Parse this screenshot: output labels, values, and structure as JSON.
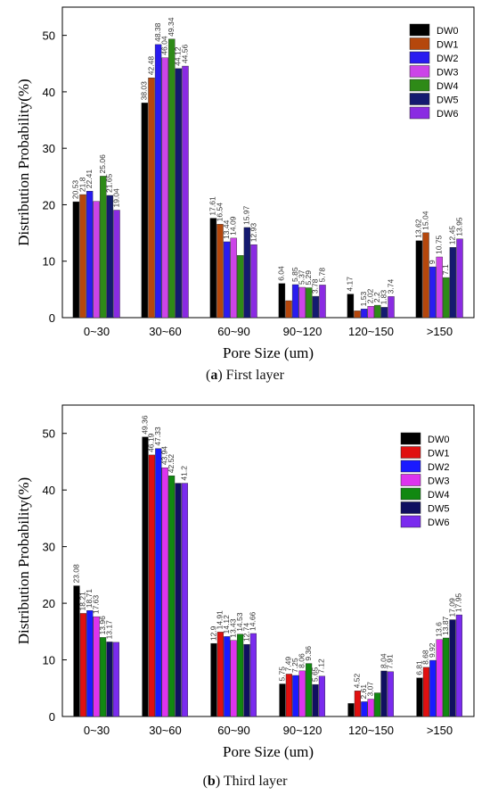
{
  "captions": [
    {
      "letter": "a",
      "text": "First layer"
    },
    {
      "letter": "b",
      "text": "Third layer"
    }
  ],
  "chart_data": [
    {
      "type": "bar",
      "xlabel": "Pore Size (um)",
      "ylabel": "Distribution Probability(%)",
      "ylim": [
        0,
        55
      ],
      "yticks": [
        0,
        10,
        20,
        30,
        40,
        50
      ],
      "grid": false,
      "legend_position": "top-right",
      "categories": [
        "0~30",
        "30~60",
        "60~90",
        "90~120",
        "120~150",
        ">150"
      ],
      "series": [
        {
          "name": "DW0",
          "color": "#000000",
          "values": [
            20.53,
            38.03,
            17.61,
            6.04,
            4.17,
            13.62
          ],
          "labels": [
            "20.53",
            "38.03",
            "17.61",
            "6.04",
            "4.17",
            "13.62"
          ]
        },
        {
          "name": "DW1",
          "color": "#b5470c",
          "values": [
            21.8,
            42.48,
            16.54,
            3.0,
            1.2,
            15.04
          ],
          "labels": [
            "21.8",
            "42.48",
            "16.54",
            "",
            "",
            "15.04"
          ]
        },
        {
          "name": "DW2",
          "color": "#2a1cf0",
          "values": [
            22.41,
            48.38,
            13.44,
            5.85,
            1.53,
            9.0
          ],
          "labels": [
            "22.41",
            "48.38",
            "13.44",
            "5.85",
            "1.53",
            "9"
          ]
        },
        {
          "name": "DW3",
          "color": "#cc44e8",
          "values": [
            20.6,
            46.04,
            14.09,
            5.37,
            2.02,
            10.75
          ],
          "labels": [
            "",
            "46.04",
            "14.09",
            "5.37",
            "2.02",
            "10.75"
          ]
        },
        {
          "name": "DW4",
          "color": "#2e8a17",
          "values": [
            25.06,
            49.34,
            11.03,
            5.29,
            2.2,
            7.1
          ],
          "labels": [
            "25.06",
            "49.34",
            "",
            "5.29",
            "2.2",
            "7.1"
          ]
        },
        {
          "name": "DW5",
          "color": "#141a70",
          "values": [
            21.65,
            44.12,
            15.97,
            3.78,
            1.83,
            12.45
          ],
          "labels": [
            "21.65",
            "44.12",
            "15.97",
            "3.78",
            "1.83",
            "12.45"
          ]
        },
        {
          "name": "DW6",
          "color": "#8a2be2",
          "values": [
            19.04,
            44.56,
            12.93,
            5.78,
            3.74,
            13.95
          ],
          "labels": [
            "19.04",
            "44.56",
            "12.93",
            "5.78",
            "3.74",
            "13.95"
          ]
        }
      ]
    },
    {
      "type": "bar",
      "xlabel": "Pore Size (um)",
      "ylabel": "Distribution Probability(%)",
      "ylim": [
        0,
        55
      ],
      "yticks": [
        0,
        10,
        20,
        30,
        40,
        50
      ],
      "grid": false,
      "legend_position": "top-right",
      "categories": [
        "0~30",
        "30~60",
        "60~90",
        "90~120",
        "120~150",
        ">150"
      ],
      "series": [
        {
          "name": "DW0",
          "color": "#000000",
          "values": [
            23.08,
            49.36,
            12.9,
            5.75,
            2.3,
            6.81
          ],
          "labels": [
            "23.08",
            "49.36",
            "12.9",
            "5.75",
            "",
            "6.81"
          ]
        },
        {
          "name": "DW1",
          "color": "#e01010",
          "values": [
            18.21,
            46.19,
            14.91,
            7.49,
            4.52,
            8.68
          ],
          "labels": [
            "18.21",
            "46.19",
            "14.91",
            "7.49",
            "4.52",
            "8.68"
          ]
        },
        {
          "name": "DW2",
          "color": "#1a1aff",
          "values": [
            18.71,
            47.33,
            14.12,
            7.25,
            2.61,
            9.92
          ],
          "labels": [
            "18.71",
            "47.33",
            "14.12",
            "7.25",
            "2.61",
            "9.92"
          ]
        },
        {
          "name": "DW3",
          "color": "#dd33ee",
          "values": [
            17.63,
            43.94,
            13.43,
            8.06,
            3.07,
            13.6
          ],
          "labels": [
            "17.63",
            "43.94",
            "13.43",
            "8.06",
            "3.07",
            "13.6"
          ]
        },
        {
          "name": "DW4",
          "color": "#118811",
          "values": [
            13.96,
            42.52,
            14.53,
            9.36,
            4.17,
            13.87
          ],
          "labels": [
            "13.96",
            "42.52",
            "14.53",
            "9.36",
            "",
            "13.87"
          ]
        },
        {
          "name": "DW5",
          "color": "#101060",
          "values": [
            13.17,
            41.2,
            12.74,
            5.65,
            8.04,
            17.09
          ],
          "labels": [
            "13.17",
            "",
            "12.74",
            "5.65",
            "8.04",
            "17.09"
          ]
        },
        {
          "name": "DW6",
          "color": "#7a2bee",
          "values": [
            13.1,
            41.2,
            14.66,
            7.12,
            7.91,
            17.95
          ],
          "labels": [
            "",
            "41.2",
            "14.66",
            "7.12",
            "7.91",
            "17.95"
          ]
        }
      ]
    }
  ]
}
